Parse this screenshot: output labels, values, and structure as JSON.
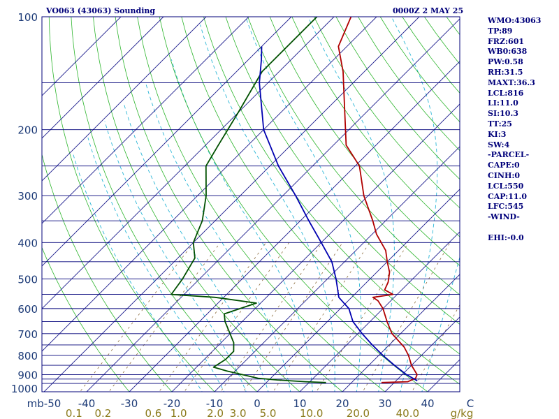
{
  "header": {
    "left": "VO063 (43063) Sounding",
    "right": "0000Z  2 MAY 25"
  },
  "indices": [
    "WMO:43063",
    "TP:89",
    "FRZ:601",
    "WB0:638",
    "PW:0.58",
    "RH:31.5",
    "MAXT:36.3",
    "LCL:816",
    "LI:11.0",
    "SI:10.3",
    "TT:25",
    "KI:3",
    "SW:4",
    "-PARCEL-",
    "CAPE:0",
    "CINH:0",
    "LCL:550",
    "CAP:11.0",
    "LFC:545",
    "-WIND-",
    "",
    "EHI:-0.0"
  ],
  "colors": {
    "frame": "#00007a",
    "isobar": "#00007a",
    "isotherm": "#1a1a8c",
    "dry_adiabat": "#2db52d",
    "moist_adiabat": "#2ab6d6",
    "mixing_ratio": "#8a6a3a",
    "temperature": "#b00000",
    "dewpoint": "#005000",
    "parcel": "#0000b0",
    "pressure_labels": "#1e3c78",
    "temp_labels": "#1e3c78",
    "mixing_labels": "#8a7a1a"
  },
  "chart_data": {
    "type": "line",
    "title": "VO063 (43063) Sounding",
    "y_axis": {
      "unit": "mb",
      "scale": "log",
      "range": [
        1000,
        100
      ],
      "ticks": [
        100,
        200,
        300,
        400,
        500,
        600,
        700,
        800,
        900,
        1000
      ],
      "isobars": [
        150,
        250,
        350,
        450,
        550,
        650,
        750,
        850,
        925,
        950
      ]
    },
    "x_axis": {
      "unit": "C",
      "range": [
        -50,
        50
      ],
      "tick_labels": [
        "mb-50",
        "-40",
        "-30",
        "-20",
        "-10",
        "0",
        "10",
        "20",
        "30",
        "40",
        "C"
      ],
      "tick_values": [
        -50,
        -40,
        -30,
        -20,
        -10,
        0,
        10,
        20,
        30,
        40,
        50
      ]
    },
    "mixing_ratio_labels": [
      {
        "label": "0.1",
        "value": 0.1
      },
      {
        "label": "0.2",
        "value": 0.2
      },
      {
        "label": "0.6",
        "value": 0.6
      },
      {
        "label": "1.0",
        "value": 1.0
      },
      {
        "label": "2.0",
        "value": 2.0
      },
      {
        "label": "3.0",
        "value": 3.0
      },
      {
        "label": "5.0",
        "value": 5.0
      },
      {
        "label": "10.0",
        "value": 10.0
      },
      {
        "label": "20.0",
        "value": 20.0
      },
      {
        "label": "40.0",
        "value": 40.0
      }
    ],
    "mixing_ratio_unit": "g/kg",
    "series": [
      {
        "role": "temperature",
        "points": [
          [
            945,
            27
          ],
          [
            940,
            33
          ],
          [
            920,
            34
          ],
          [
            900,
            33.5
          ],
          [
            850,
            30
          ],
          [
            800,
            27
          ],
          [
            760,
            24
          ],
          [
            700,
            18
          ],
          [
            650,
            14
          ],
          [
            600,
            10
          ],
          [
            572,
            7
          ],
          [
            560,
            5
          ],
          [
            550,
            9
          ],
          [
            535,
            6
          ],
          [
            510,
            5
          ],
          [
            480,
            3
          ],
          [
            450,
            0
          ],
          [
            420,
            -3
          ],
          [
            380,
            -9
          ],
          [
            350,
            -13
          ],
          [
            300,
            -21
          ],
          [
            250,
            -29
          ],
          [
            220,
            -37
          ],
          [
            180,
            -45
          ],
          [
            140,
            -55
          ],
          [
            120,
            -62
          ],
          [
            100,
            -66
          ]
        ]
      },
      {
        "role": "dewpoint",
        "points": [
          [
            945,
            14
          ],
          [
            940,
            9
          ],
          [
            930,
            2
          ],
          [
            920,
            -3
          ],
          [
            880,
            -12
          ],
          [
            860,
            -16
          ],
          [
            820,
            -15
          ],
          [
            780,
            -15
          ],
          [
            740,
            -17
          ],
          [
            700,
            -20
          ],
          [
            650,
            -24
          ],
          [
            620,
            -26
          ],
          [
            580,
            -21
          ],
          [
            560,
            -32
          ],
          [
            550,
            -43
          ],
          [
            500,
            -44
          ],
          [
            440,
            -46
          ],
          [
            400,
            -50
          ],
          [
            350,
            -53
          ],
          [
            300,
            -58
          ],
          [
            250,
            -65
          ],
          [
            220,
            -67
          ],
          [
            180,
            -70
          ],
          [
            140,
            -74
          ],
          [
            120,
            -74
          ],
          [
            100,
            -74
          ]
        ]
      },
      {
        "role": "parcel",
        "points": [
          [
            935,
            35
          ],
          [
            900,
            31
          ],
          [
            850,
            26
          ],
          [
            800,
            21
          ],
          [
            750,
            16
          ],
          [
            700,
            11
          ],
          [
            650,
            6
          ],
          [
            600,
            2
          ],
          [
            560,
            -3
          ],
          [
            500,
            -8
          ],
          [
            450,
            -13
          ],
          [
            400,
            -20
          ],
          [
            350,
            -28
          ],
          [
            300,
            -37
          ],
          [
            250,
            -48
          ],
          [
            200,
            -60
          ],
          [
            150,
            -72
          ],
          [
            130,
            -77
          ],
          [
            120,
            -80
          ]
        ]
      }
    ]
  }
}
